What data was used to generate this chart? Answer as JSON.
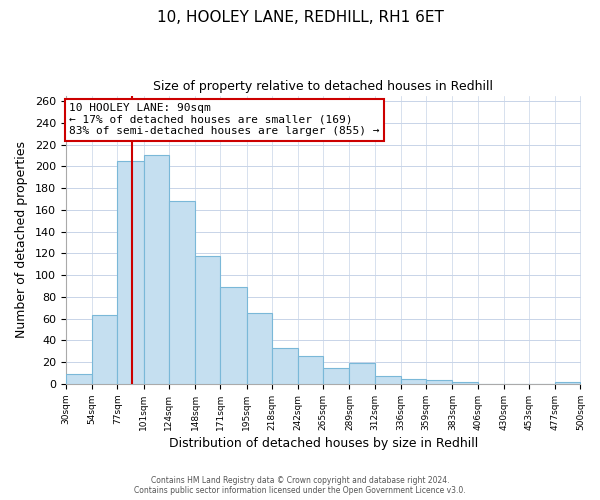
{
  "title1": "10, HOOLEY LANE, REDHILL, RH1 6ET",
  "title2": "Size of property relative to detached houses in Redhill",
  "xlabel": "Distribution of detached houses by size in Redhill",
  "ylabel": "Number of detached properties",
  "bin_labels": [
    "30sqm",
    "54sqm",
    "77sqm",
    "101sqm",
    "124sqm",
    "148sqm",
    "171sqm",
    "195sqm",
    "218sqm",
    "242sqm",
    "265sqm",
    "289sqm",
    "312sqm",
    "336sqm",
    "359sqm",
    "383sqm",
    "406sqm",
    "430sqm",
    "453sqm",
    "477sqm",
    "500sqm"
  ],
  "bin_edges": [
    30,
    54,
    77,
    101,
    124,
    148,
    171,
    195,
    218,
    242,
    265,
    289,
    312,
    336,
    359,
    383,
    406,
    430,
    453,
    477,
    500
  ],
  "bar_values": [
    9,
    63,
    205,
    210,
    168,
    118,
    89,
    65,
    33,
    26,
    15,
    19,
    7,
    5,
    4,
    2,
    0,
    0,
    0,
    2,
    0
  ],
  "bar_color": "#c5dff0",
  "bar_edge_color": "#7ab8d8",
  "property_size": 90,
  "vline_color": "#cc0000",
  "annotation_line1": "10 HOOLEY LANE: 90sqm",
  "annotation_line2": "← 17% of detached houses are smaller (169)",
  "annotation_line3": "83% of semi-detached houses are larger (855) →",
  "annotation_box_color": "#ffffff",
  "annotation_box_edge": "#cc0000",
  "ylim": [
    0,
    265
  ],
  "yticks": [
    0,
    20,
    40,
    60,
    80,
    100,
    120,
    140,
    160,
    180,
    200,
    220,
    240,
    260
  ],
  "footer1": "Contains HM Land Registry data © Crown copyright and database right 2024.",
  "footer2": "Contains public sector information licensed under the Open Government Licence v3.0.",
  "background_color": "#ffffff",
  "grid_color": "#c8d4e8"
}
